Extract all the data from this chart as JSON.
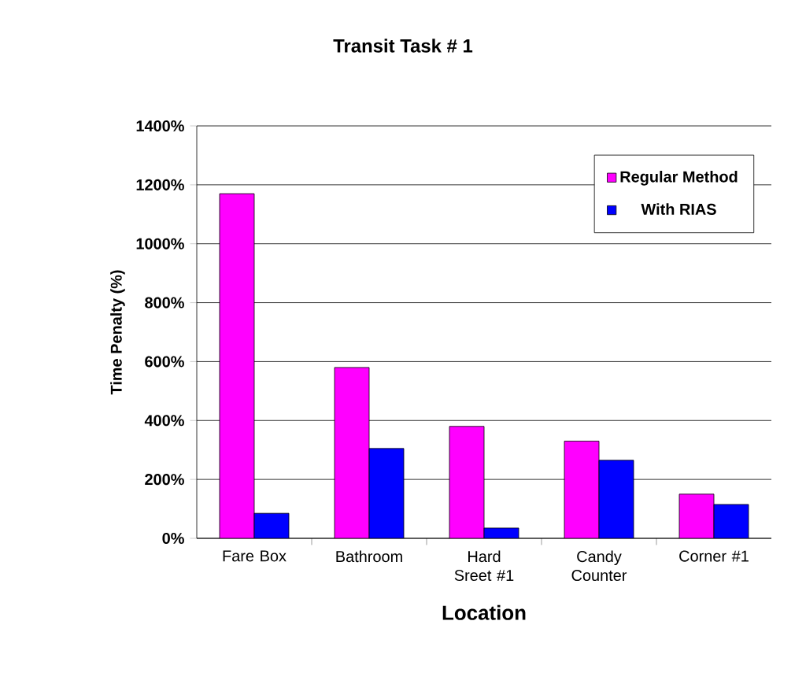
{
  "chart_data": {
    "type": "bar",
    "title": "Transit Task # 1",
    "xlabel": "Location",
    "ylabel": "Time Penalty (%)",
    "categories": [
      "Fare Box",
      "Bathroom",
      "Hard Sreet #1",
      "Candy Counter",
      "Corner #1"
    ],
    "series": [
      {
        "name": "Regular Method",
        "color": "#ff00ff",
        "values": [
          1170,
          580,
          380,
          330,
          150
        ]
      },
      {
        "name": "With RIAS",
        "color": "#0000ff",
        "values": [
          85,
          305,
          35,
          265,
          115
        ]
      }
    ],
    "ylim": [
      0,
      1400
    ],
    "yticks": [
      {
        "value": 0,
        "label": "0%"
      },
      {
        "value": 200,
        "label": "200%"
      },
      {
        "value": 400,
        "label": "400%"
      },
      {
        "value": 600,
        "label": "600%"
      },
      {
        "value": 800,
        "label": "800%"
      },
      {
        "value": 1000,
        "label": "1000%"
      },
      {
        "value": 1200,
        "label": "1200%"
      },
      {
        "value": 1400,
        "label": "1400%"
      }
    ],
    "grid": "y",
    "legend": "top right"
  }
}
